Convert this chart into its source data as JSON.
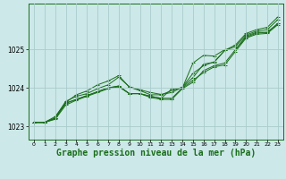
{
  "background_color": "#cce8e8",
  "plot_bg_color": "#cce8e8",
  "grid_color": "#aacccc",
  "line_color": "#1a6e1a",
  "xlabel": "Graphe pression niveau de la mer (hPa)",
  "xlabel_fontsize": 7,
  "xlim": [
    -0.5,
    23.5
  ],
  "ylim": [
    1022.65,
    1026.2
  ],
  "yticks": [
    1023,
    1024,
    1025
  ],
  "xticks": [
    0,
    1,
    2,
    3,
    4,
    5,
    6,
    7,
    8,
    9,
    10,
    11,
    12,
    13,
    14,
    15,
    16,
    17,
    18,
    19,
    20,
    21,
    22,
    23
  ],
  "series": [
    [
      1023.1,
      1023.1,
      1023.2,
      1023.6,
      1023.7,
      1023.8,
      1023.9,
      1024.0,
      1024.05,
      1023.85,
      1023.85,
      1023.78,
      1023.73,
      1023.73,
      1024.0,
      1024.2,
      1024.4,
      1024.55,
      1024.6,
      1024.95,
      1025.3,
      1025.4,
      1025.42,
      1025.65
    ],
    [
      1023.1,
      1023.1,
      1023.18,
      1023.55,
      1023.68,
      1023.78,
      1023.88,
      1023.98,
      1024.03,
      1023.85,
      1023.85,
      1023.75,
      1023.7,
      1023.7,
      1023.98,
      1024.15,
      1024.45,
      1024.58,
      1024.65,
      1025.0,
      1025.32,
      1025.43,
      1025.45,
      1025.68
    ],
    [
      1023.1,
      1023.1,
      1023.22,
      1023.65,
      1023.78,
      1023.85,
      1023.98,
      1024.08,
      1024.28,
      1024.03,
      1023.95,
      1023.88,
      1023.83,
      1023.88,
      1024.02,
      1024.38,
      1024.58,
      1024.68,
      1024.98,
      1025.08,
      1025.38,
      1025.48,
      1025.52,
      1025.78
    ],
    [
      1023.1,
      1023.1,
      1023.25,
      1023.62,
      1023.82,
      1023.92,
      1024.08,
      1024.18,
      1024.32,
      1024.02,
      1023.93,
      1023.82,
      1023.82,
      1023.93,
      1024.02,
      1024.27,
      1024.62,
      1024.67,
      1024.98,
      1025.12,
      1025.42,
      1025.52,
      1025.58,
      1025.85
    ]
  ],
  "series_diverge": [
    1023.1,
    1023.1,
    1023.2,
    1023.6,
    1023.7,
    1023.8,
    1023.9,
    1024.0,
    1024.05,
    1023.85,
    1023.85,
    1023.78,
    1023.73,
    1023.97,
    1024.0,
    1024.65,
    1024.85,
    1024.83,
    1025.0,
    1025.0,
    1025.35,
    1025.45,
    1025.45,
    1025.68
  ]
}
